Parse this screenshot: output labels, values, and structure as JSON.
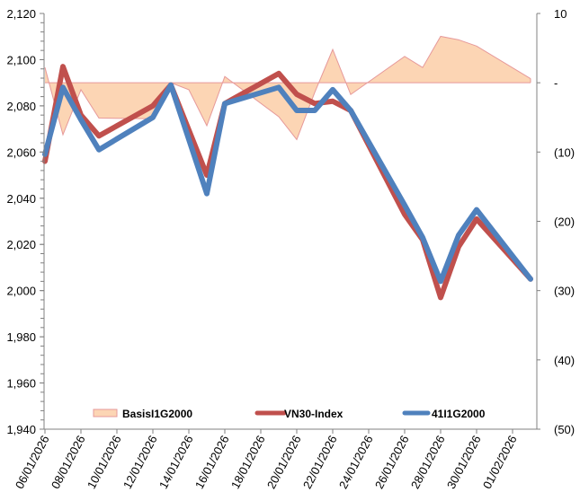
{
  "chart_data": {
    "type": "line",
    "title": "",
    "xlabel": "",
    "ylabel": "",
    "y2label": "",
    "x_tick_labels": [
      "06/01/2026",
      "08/01/2026",
      "10/01/2026",
      "12/01/2026",
      "14/01/2026",
      "16/01/2026",
      "18/01/2026",
      "20/01/2026",
      "22/01/2026",
      "24/01/2026",
      "26/01/2026",
      "28/01/2026",
      "30/01/2026",
      "01/02/2026"
    ],
    "y_tick_labels": [
      "2,120",
      "2,100",
      "2,080",
      "2,060",
      "2,040",
      "2,020",
      "2,000",
      "1,980",
      "1,960",
      "1,940"
    ],
    "y_ticks": [
      2120,
      2100,
      2080,
      2060,
      2040,
      2020,
      2000,
      1980,
      1960,
      1940
    ],
    "y2_tick_labels": [
      "10",
      "-",
      "(10)",
      "(20)",
      "(30)",
      "(40)",
      "(50)"
    ],
    "y2_ticks": [
      10,
      0,
      -10,
      -20,
      -30,
      -40,
      -50
    ],
    "ylim": [
      1940,
      2120
    ],
    "y2lim": [
      -50,
      10
    ],
    "x_days": [
      0,
      1,
      2,
      3,
      6,
      7,
      8,
      9,
      10,
      13,
      14,
      15,
      16,
      17,
      20,
      21,
      22,
      23,
      24,
      27
    ],
    "x": [
      "06/01/2026",
      "07/01/2026",
      "08/01/2026",
      "09/01/2026",
      "12/01/2026",
      "13/01/2026",
      "14/01/2026",
      "15/01/2026",
      "16/01/2026",
      "19/01/2026",
      "20/01/2026",
      "21/01/2026",
      "22/01/2026",
      "23/01/2026",
      "26/01/2026",
      "27/01/2026",
      "28/01/2026",
      "29/01/2026",
      "30/01/2026",
      "02/02/2026"
    ],
    "series": [
      {
        "name": "BasisI1G2000",
        "type": "area",
        "axis": "secondary",
        "fill": "#fcd5b4",
        "stroke": "#e6999a",
        "values": [
          2.2,
          -7.5,
          -1.0,
          -5.1,
          -5.2,
          0.0,
          -1.0,
          -6.2,
          0.9,
          -4.9,
          -8.2,
          -1.4,
          4.8,
          -1.7,
          3.8,
          2.2,
          6.7,
          6.2,
          5.3,
          0.6
        ]
      },
      {
        "name": "VN30-Index",
        "type": "line",
        "axis": "primary",
        "color": "#c0504d",
        "values": [
          2056,
          2097,
          2076,
          2067,
          2080,
          2089,
          null,
          2050,
          2081,
          2094,
          2085,
          2081,
          2082,
          2078,
          2033,
          2022,
          1997,
          2019,
          2031,
          2005
        ]
      },
      {
        "name": "41I1G2000",
        "type": "line",
        "axis": "primary",
        "color": "#4f81bd",
        "values": [
          2059,
          2088,
          2074,
          2061,
          2075,
          2089,
          null,
          2042,
          2081,
          2088,
          2078,
          2078,
          2087,
          2078,
          2037,
          2023,
          2004,
          2024,
          2035,
          2005
        ]
      }
    ],
    "legend": {
      "position": "bottom-inside",
      "entries": [
        "BasisI1G2000",
        "VN30-Index",
        "41I1G2000"
      ]
    },
    "grid": false
  },
  "legend": {
    "basis_label": "BasisI1G2000",
    "vn30_label": "VN30-Index",
    "fut_label": "41I1G2000"
  }
}
